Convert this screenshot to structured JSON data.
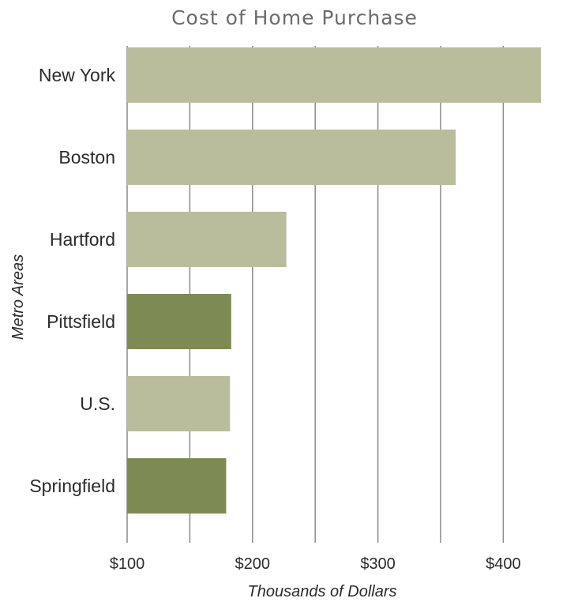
{
  "chart_data": {
    "type": "bar",
    "orientation": "horizontal",
    "title": "Cost of Home Purchase",
    "xlabel": "Thousands of Dollars",
    "ylabel": "Metro Areas",
    "categories": [
      "New York",
      "Boston",
      "Hartford",
      "Pittsfield",
      "U.S.",
      "Springfield"
    ],
    "values": [
      430,
      362,
      227,
      183,
      182,
      179
    ],
    "highlight": [
      false,
      false,
      false,
      true,
      false,
      true
    ],
    "xlim": [
      100,
      430
    ],
    "x_ticks": [
      100,
      200,
      300,
      400
    ],
    "x_tick_labels": [
      "$100",
      "$200",
      "$300",
      "$400"
    ],
    "gridlines_every": 50,
    "grid": true,
    "colors": {
      "bar": "#b9bd9b",
      "bar_highlight": "#7e8a53",
      "grid": "#8a8a8a"
    }
  }
}
